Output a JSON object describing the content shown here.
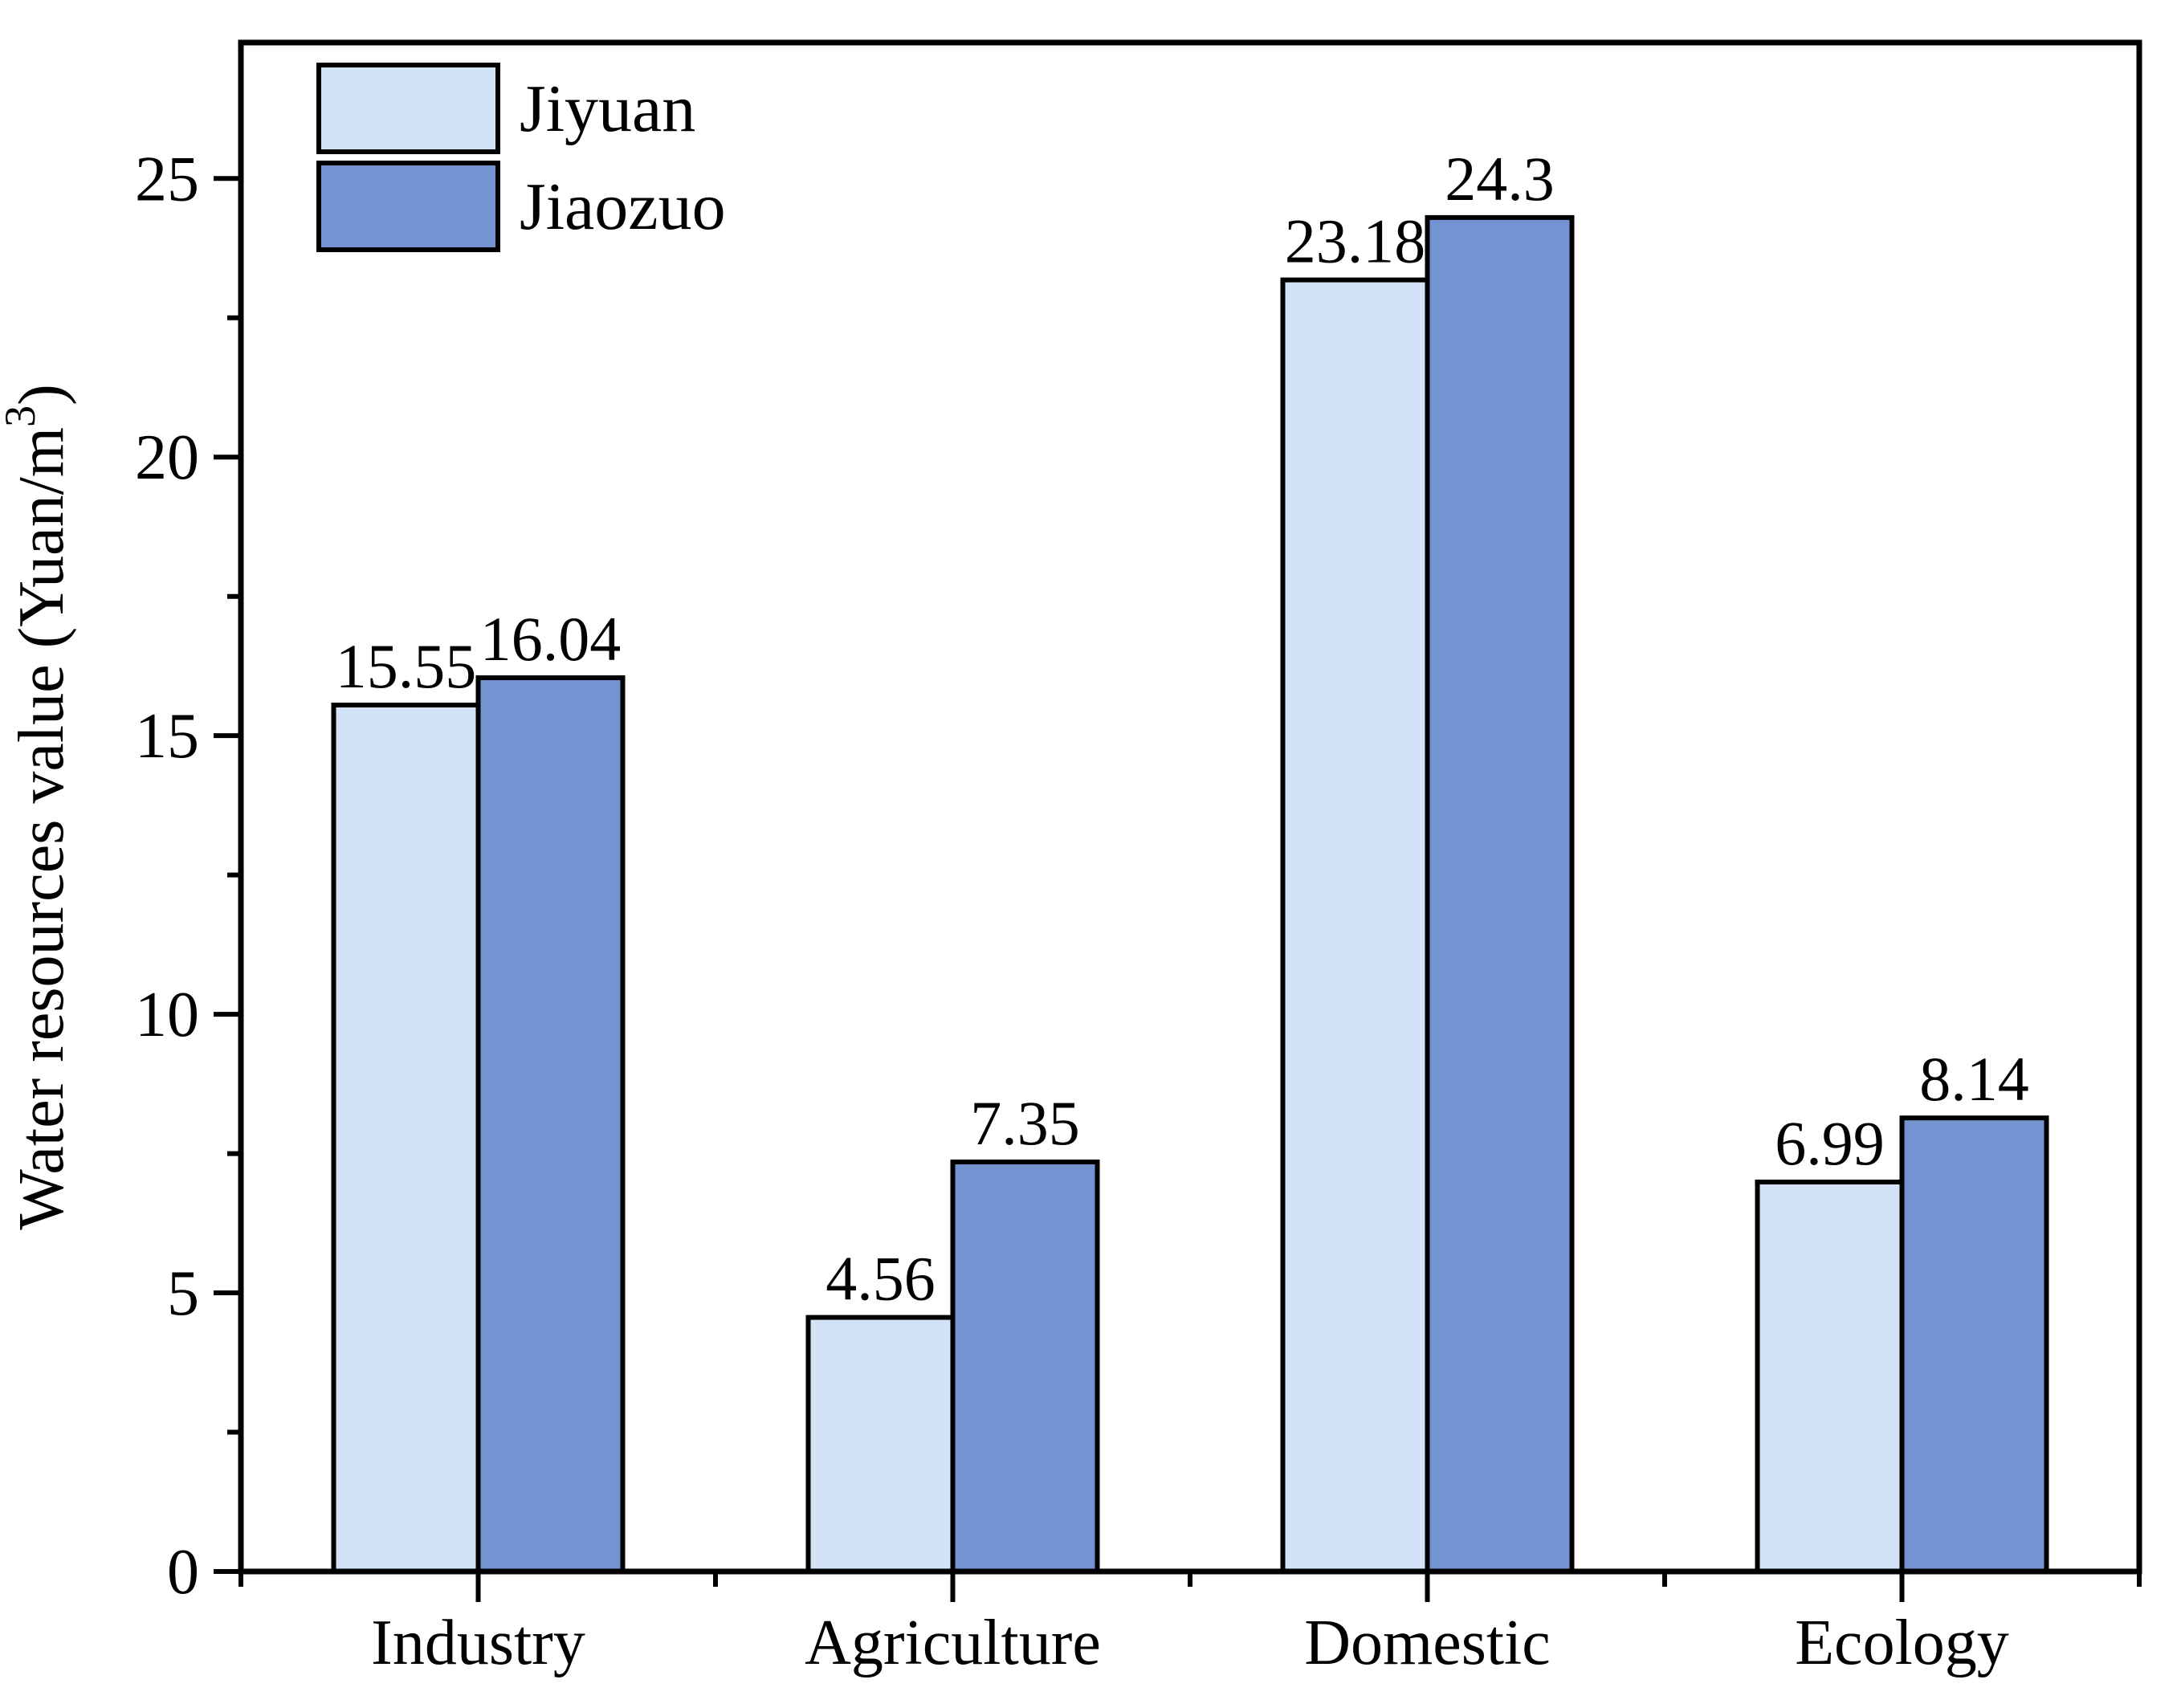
{
  "figure": {
    "background": "#ffffff",
    "text_color": "#000000",
    "axis_color": "#000000"
  },
  "chart_data": {
    "type": "bar",
    "title": "",
    "categories": [
      "Industry",
      "Agriculture",
      "Domestic",
      "Ecology"
    ],
    "series": [
      {
        "name": "Jiyuan",
        "color": "#D2E3F7",
        "values": [
          15.55,
          4.56,
          23.18,
          6.99
        ]
      },
      {
        "name": "Jiaozuo",
        "color": "#7394D0",
        "values": [
          16.04,
          7.35,
          24.3,
          8.14
        ]
      }
    ],
    "bar_border_color": "#000000",
    "ylabel": "Water resources value (Yuan/m³)",
    "ylabel_main": "Water resources value (Yuan/m",
    "ylabel_sup": "3",
    "ylabel_close": ")",
    "xlabel": "",
    "ylim": [
      0,
      27.44
    ],
    "yticks": [
      0,
      5,
      10,
      15,
      20,
      25
    ],
    "yticks_minor": [
      2.5,
      7.5,
      12.5,
      17.5,
      22.5
    ],
    "grid": false,
    "legend_position": "top-left",
    "value_labels_shown": true
  }
}
